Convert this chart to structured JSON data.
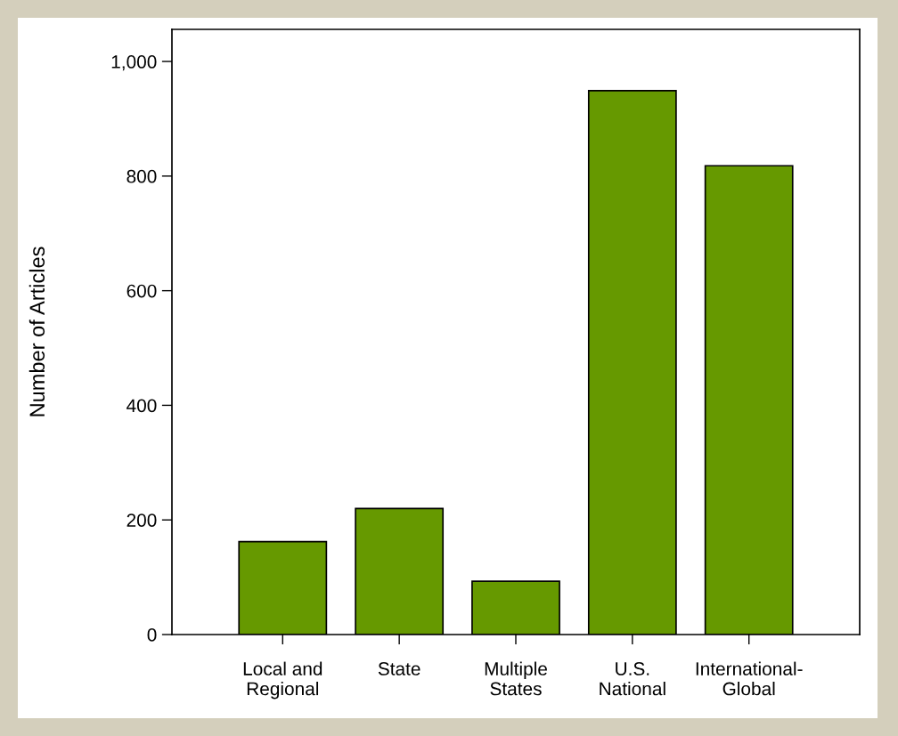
{
  "chart_data": {
    "type": "bar",
    "ylabel": "Number of Articles",
    "categories": [
      "Local and\nRegional",
      "State",
      "Multiple\nStates",
      "U.S.\nNational",
      "International-\nGlobal"
    ],
    "values": [
      162,
      220,
      93,
      949,
      818
    ],
    "color": "#669900",
    "ylim": [
      0,
      1056
    ],
    "yticks": [
      0,
      200,
      400,
      600,
      800,
      {
        "value": 1000,
        "label": "1,000"
      }
    ],
    "grid": false,
    "legend": false
  }
}
